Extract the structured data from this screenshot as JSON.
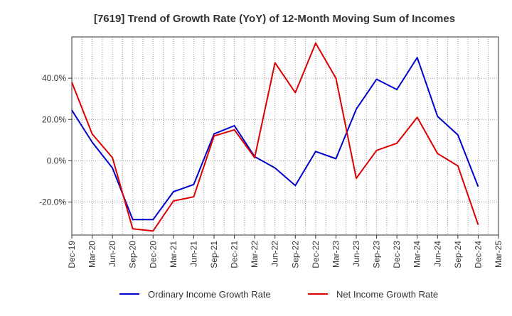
{
  "chart_data": {
    "type": "line",
    "title": "[7619]  Trend of Growth Rate (YoY) of 12-Month Moving Sum of Incomes",
    "xlabel": "",
    "ylabel": "",
    "categories": [
      "Dec-19",
      "Mar-20",
      "Jun-20",
      "Sep-20",
      "Dec-20",
      "Mar-21",
      "Jun-21",
      "Sep-21",
      "Dec-21",
      "Mar-22",
      "Jun-22",
      "Sep-22",
      "Dec-22",
      "Mar-23",
      "Jun-23",
      "Sep-23",
      "Dec-23",
      "Mar-24",
      "Jun-24",
      "Sep-24",
      "Dec-24",
      "Mar-25"
    ],
    "ylim": [
      -36,
      60
    ],
    "yticks": [
      -20,
      0,
      20,
      40
    ],
    "ytick_labels": [
      "-20.0%",
      "0.0%",
      "20.0%",
      "40.0%"
    ],
    "grid": true,
    "legend_position": "bottom",
    "series": [
      {
        "name": "Ordinary Income Growth Rate",
        "color": "#0000cc",
        "values": [
          24.5,
          9.0,
          -3.5,
          -28.5,
          -28.5,
          -15.0,
          -11.5,
          13.0,
          17.0,
          2.0,
          -3.5,
          -12.0,
          4.5,
          1.0,
          25.0,
          39.5,
          34.5,
          50.0,
          21.5,
          12.5,
          -12.5,
          null
        ]
      },
      {
        "name": "Net Income Growth Rate",
        "color": "#dd0000",
        "values": [
          38.0,
          13.0,
          1.5,
          -33.0,
          -34.0,
          -19.5,
          -17.5,
          12.0,
          15.0,
          1.5,
          47.5,
          33.0,
          57.0,
          40.0,
          -8.5,
          5.0,
          8.5,
          21.0,
          3.5,
          -2.5,
          -31.0,
          null
        ]
      }
    ]
  }
}
